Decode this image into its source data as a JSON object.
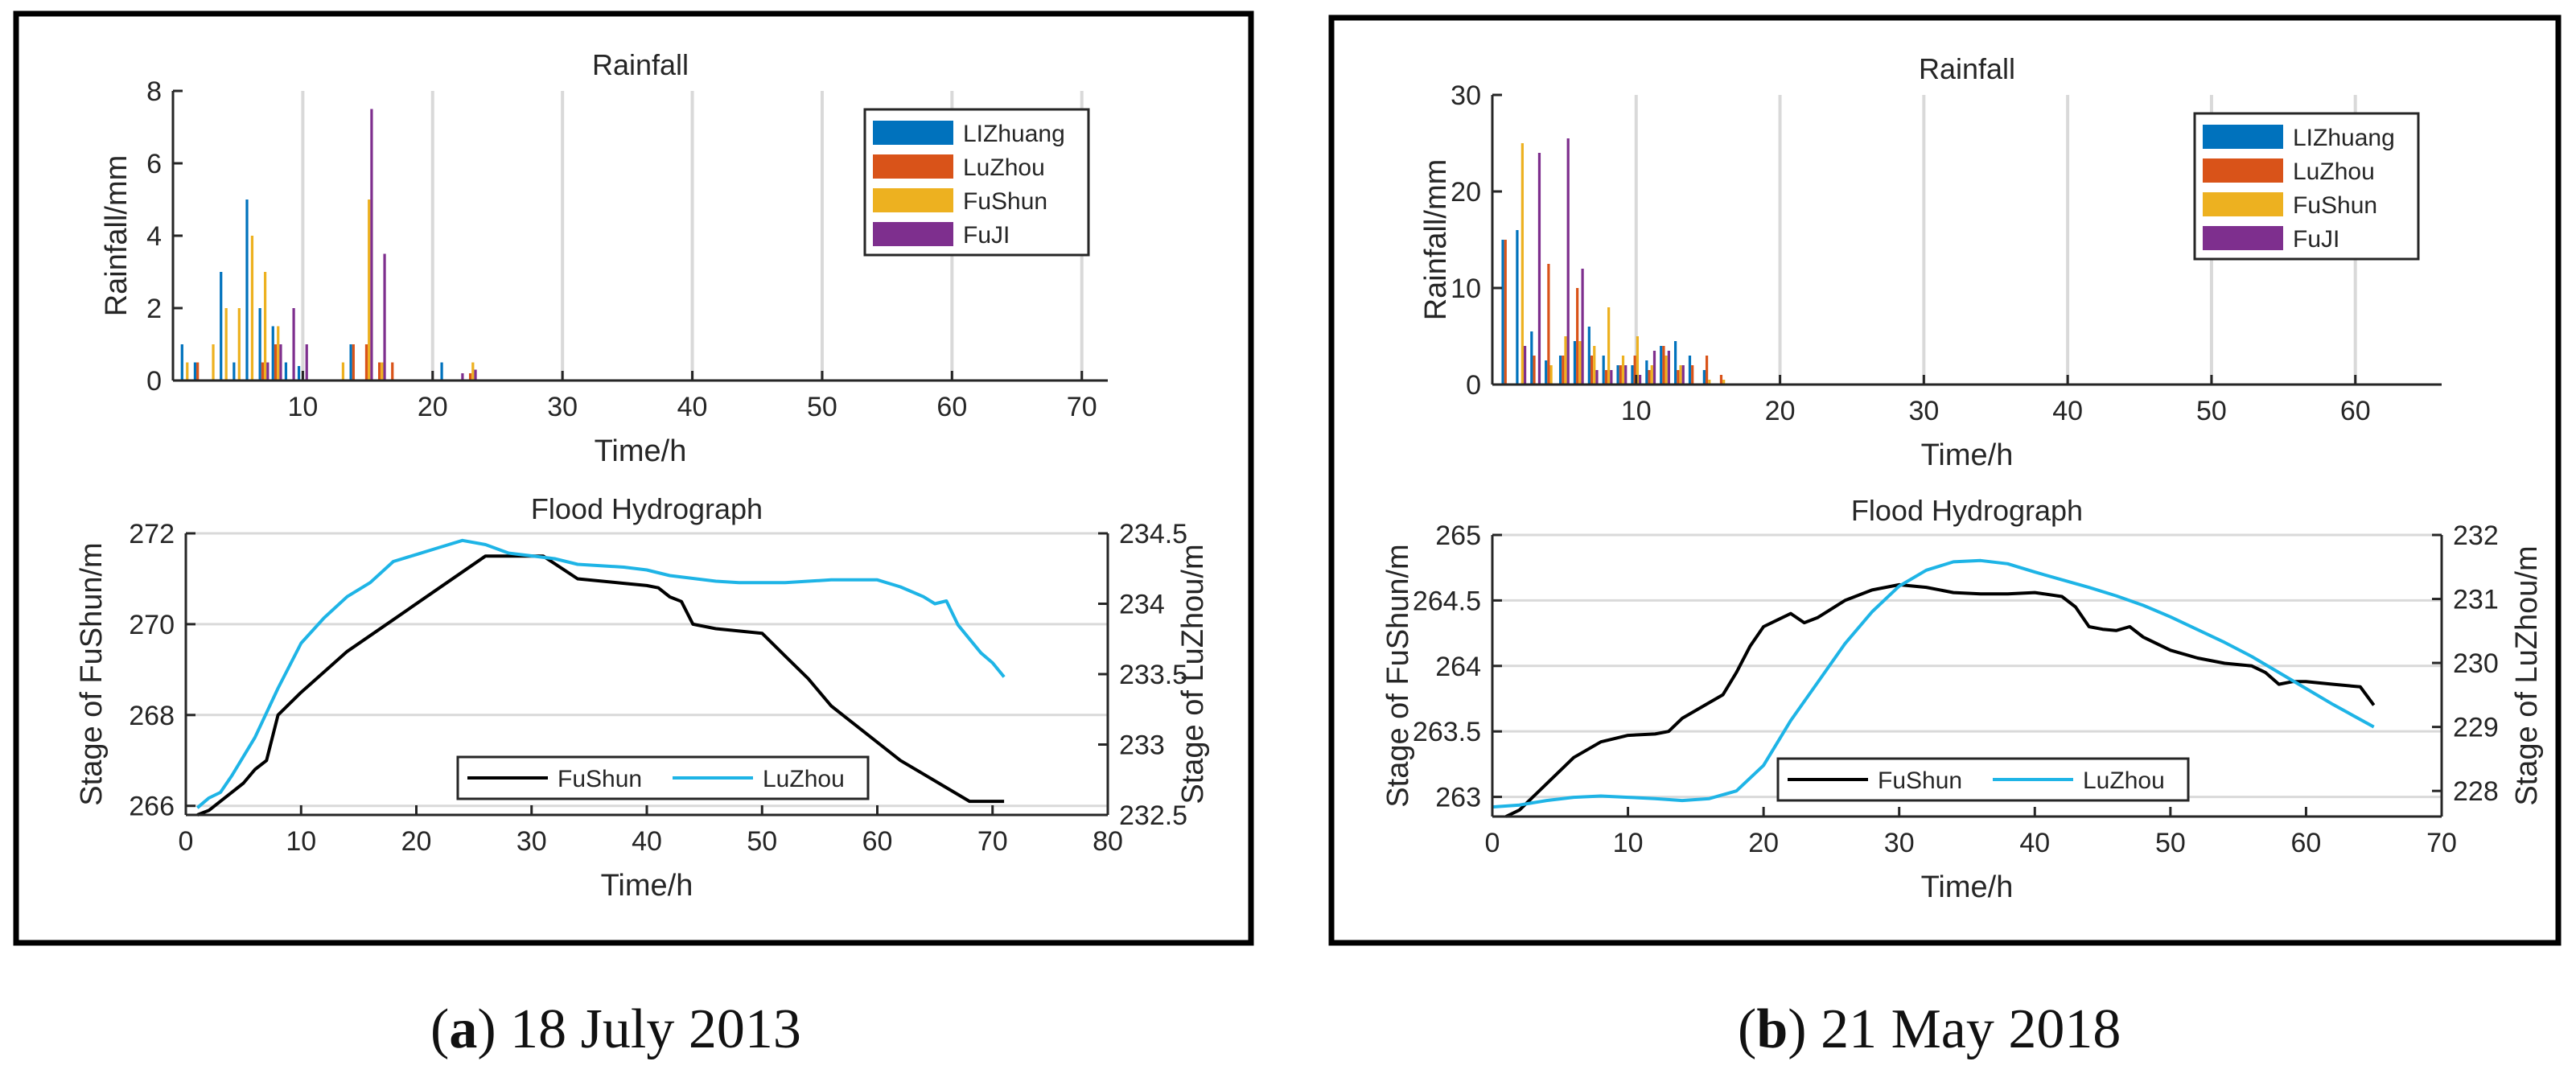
{
  "colors": {
    "LIZhuang": "#0072BD",
    "LuZhou": "#D95319",
    "FuShun": "#EDB120",
    "FuJI": "#7E2F8E",
    "stage_fushun": "#000000",
    "stage_luzhou": "#1EB4E6",
    "grid": "#d9d9d9",
    "axis": "#262626"
  },
  "captions": [
    {
      "letter": "a",
      "text": "18 July 2013"
    },
    {
      "letter": "b",
      "text": "21 May 2018"
    }
  ],
  "chart_data": [
    {
      "id": "a-rain",
      "type": "bar",
      "title": "Rainfall",
      "xlabel": "Time/h",
      "ylabel": "Rainfall/mm",
      "xlim": [
        0,
        72
      ],
      "ylim": [
        0,
        8
      ],
      "xticks": [
        10,
        20,
        30,
        40,
        50,
        60,
        70
      ],
      "yticks": [
        0,
        2,
        4,
        6,
        8
      ],
      "grid": "x",
      "legend": "top-right",
      "series": [
        {
          "name": "LIZhuang",
          "x": [
            1,
            2,
            3,
            4,
            5,
            6,
            7,
            8,
            9,
            10,
            13,
            14,
            15,
            16,
            17,
            21,
            22,
            23
          ],
          "values": [
            1,
            0.5,
            0,
            3,
            0.5,
            5,
            2,
            1.5,
            0.5,
            0.4,
            0,
            1,
            0,
            0,
            0,
            0.5,
            0,
            0
          ]
        },
        {
          "name": "LuZhou",
          "x": [
            1,
            2,
            3,
            4,
            5,
            6,
            7,
            8,
            9,
            10,
            13,
            14,
            15,
            16,
            17,
            21,
            22,
            23
          ],
          "values": [
            0,
            0.5,
            0,
            0,
            0,
            0,
            0.5,
            1,
            0,
            0,
            0,
            1,
            1,
            0.5,
            0.5,
            0,
            0,
            0.2
          ]
        },
        {
          "name": "FuShun",
          "x": [
            1,
            2,
            3,
            4,
            5,
            6,
            7,
            8,
            9,
            10,
            13,
            14,
            15,
            16,
            17,
            21,
            22,
            23
          ],
          "values": [
            0.5,
            0,
            1,
            2,
            2,
            4,
            3,
            1.5,
            0,
            0,
            0.5,
            0,
            5,
            0.5,
            0,
            0,
            0,
            0.5
          ]
        },
        {
          "name": "FuJI",
          "x": [
            1,
            2,
            3,
            4,
            5,
            6,
            7,
            8,
            9,
            10,
            13,
            14,
            15,
            16,
            17,
            21,
            22,
            23
          ],
          "values": [
            0,
            0,
            0,
            0,
            0,
            0,
            0.5,
            1,
            2,
            1,
            0,
            0,
            7.5,
            3.5,
            0,
            0,
            0.2,
            0.3
          ]
        }
      ]
    },
    {
      "id": "a-flood",
      "type": "line",
      "title": "Flood Hydrograph",
      "xlabel": "Time/h",
      "ylabel_left": "Stage of FuShun/m",
      "ylabel_right": "Stage of LuZhou/m",
      "xlim": [
        0,
        80
      ],
      "ylim_left": [
        265.8,
        272
      ],
      "ylim_right": [
        232.5,
        234.5
      ],
      "xticks": [
        0,
        10,
        20,
        30,
        40,
        50,
        60,
        70,
        80
      ],
      "yticks_left": [
        266,
        268,
        270,
        272
      ],
      "yticks_right": [
        232.5,
        233,
        233.5,
        234,
        234.5
      ],
      "ytick_labels_right": [
        "232.5",
        "233",
        "233.5",
        "234",
        "234.5"
      ],
      "grid": "y",
      "legend": "bottom-center",
      "series": [
        {
          "name": "FuShun",
          "axis": "left",
          "x": [
            1,
            2,
            3,
            4,
            5,
            6,
            7,
            8,
            10,
            14,
            18,
            22,
            26,
            28,
            30,
            31,
            34,
            38,
            40,
            41,
            42,
            43,
            44,
            46,
            48,
            50,
            52,
            54,
            56,
            58,
            60,
            62,
            64,
            66,
            68,
            71
          ],
          "y": [
            265.8,
            265.9,
            266.1,
            266.3,
            266.5,
            266.8,
            267.0,
            268.0,
            268.5,
            269.4,
            270.1,
            270.8,
            271.5,
            271.5,
            271.5,
            271.5,
            271.0,
            270.9,
            270.85,
            270.8,
            270.6,
            270.5,
            270.0,
            269.9,
            269.85,
            269.8,
            269.3,
            268.8,
            268.2,
            267.8,
            267.4,
            267.0,
            266.7,
            266.4,
            266.1,
            266.1
          ]
        },
        {
          "name": "LuZhou",
          "axis": "right",
          "x": [
            1,
            2,
            3,
            4,
            6,
            8,
            10,
            12,
            14,
            16,
            18,
            20,
            22,
            24,
            26,
            28,
            30,
            32,
            34,
            36,
            38,
            40,
            42,
            44,
            46,
            48,
            50,
            52,
            54,
            56,
            58,
            60,
            62,
            64,
            65,
            66,
            67,
            68,
            69,
            70,
            71
          ],
          "y": [
            232.55,
            232.62,
            232.66,
            232.78,
            233.05,
            233.4,
            233.72,
            233.9,
            234.05,
            234.15,
            234.3,
            234.35,
            234.4,
            234.45,
            234.42,
            234.36,
            234.34,
            234.32,
            234.28,
            234.27,
            234.26,
            234.24,
            234.2,
            234.18,
            234.16,
            234.15,
            234.15,
            234.15,
            234.16,
            234.17,
            234.17,
            234.17,
            234.12,
            234.05,
            234.0,
            234.02,
            233.85,
            233.75,
            233.65,
            233.58,
            233.48
          ]
        }
      ]
    },
    {
      "id": "b-rain",
      "type": "bar",
      "title": "Rainfall",
      "xlabel": "Time/h",
      "ylabel": "Rainfall/mm",
      "xlim": [
        0,
        66
      ],
      "ylim": [
        0,
        30
      ],
      "xticks": [
        10,
        20,
        30,
        40,
        50,
        60
      ],
      "yticks": [
        0,
        10,
        20,
        30
      ],
      "grid": "x",
      "legend": "top-right",
      "series": [
        {
          "name": "LIZhuang",
          "x": [
            1,
            2,
            3,
            4,
            5,
            6,
            7,
            8,
            9,
            10,
            11,
            12,
            13,
            14,
            15,
            16
          ],
          "values": [
            15,
            16,
            5.5,
            2.5,
            3,
            4.5,
            6,
            3,
            2,
            2,
            2.5,
            4,
            4.5,
            3,
            1.5,
            0
          ]
        },
        {
          "name": "LuZhou",
          "x": [
            1,
            2,
            3,
            4,
            5,
            6,
            7,
            8,
            9,
            10,
            11,
            12,
            13,
            14,
            15,
            16
          ],
          "values": [
            15,
            0,
            3,
            12.5,
            3,
            10,
            3,
            1.5,
            2,
            3,
            1.5,
            4,
            1.5,
            2,
            3,
            1
          ]
        },
        {
          "name": "FuShun",
          "x": [
            1,
            2,
            3,
            4,
            5,
            6,
            7,
            8,
            9,
            10,
            11,
            12,
            13,
            14,
            15,
            16
          ],
          "values": [
            0,
            25,
            0,
            2,
            5,
            4.5,
            4,
            8,
            3,
            5,
            2,
            3,
            2,
            0,
            0.5,
            0.5
          ]
        },
        {
          "name": "FuJI",
          "x": [
            1,
            2,
            3,
            4,
            5,
            6,
            7,
            8,
            9,
            10,
            11,
            12,
            13,
            14,
            15,
            16
          ],
          "values": [
            0,
            4,
            24,
            0,
            25.5,
            12,
            1.5,
            1.5,
            2,
            1,
            3.5,
            3.5,
            2,
            0,
            0,
            0
          ]
        }
      ]
    },
    {
      "id": "b-flood",
      "type": "line",
      "title": "Flood Hydrograph",
      "xlabel": "Time/h",
      "ylabel_left": "Stage of FuShun/m",
      "ylabel_right": "Stage of LuZhou/m",
      "xlim": [
        0,
        70
      ],
      "ylim_left": [
        262.85,
        265
      ],
      "ylim_right": [
        227.6,
        232
      ],
      "xticks": [
        0,
        10,
        20,
        30,
        40,
        50,
        60,
        70
      ],
      "yticks_left": [
        263,
        263.5,
        264,
        264.5,
        265
      ],
      "yticks_right": [
        228,
        229,
        230,
        231,
        232
      ],
      "ytick_labels_right": [
        "228",
        "229",
        "230",
        "231",
        "232"
      ],
      "grid": "y",
      "legend": "bottom-center",
      "series": [
        {
          "name": "FuShun",
          "axis": "left",
          "x": [
            1,
            2,
            4,
            6,
            8,
            10,
            12,
            13,
            14,
            16,
            17,
            18,
            19,
            20,
            21,
            22,
            23,
            24,
            26,
            28,
            30,
            32,
            34,
            36,
            38,
            40,
            42,
            43,
            44,
            45,
            46,
            47,
            48,
            50,
            52,
            54,
            56,
            57,
            58,
            59,
            60,
            62,
            64,
            65
          ],
          "y": [
            262.85,
            262.9,
            263.1,
            263.3,
            263.42,
            263.47,
            263.48,
            263.5,
            263.6,
            263.72,
            263.78,
            263.95,
            264.15,
            264.3,
            264.35,
            264.4,
            264.33,
            264.37,
            264.5,
            264.58,
            264.62,
            264.6,
            264.56,
            264.55,
            264.55,
            264.56,
            264.53,
            264.45,
            264.3,
            264.28,
            264.27,
            264.3,
            264.22,
            264.12,
            264.06,
            264.02,
            264.0,
            263.95,
            263.86,
            263.88,
            263.88,
            263.86,
            263.84,
            263.7
          ]
        },
        {
          "name": "LuZhou",
          "axis": "right",
          "x": [
            0,
            2,
            4,
            6,
            8,
            10,
            12,
            14,
            16,
            18,
            20,
            22,
            24,
            26,
            28,
            30,
            32,
            34,
            36,
            38,
            40,
            42,
            44,
            46,
            48,
            50,
            52,
            54,
            56,
            58,
            60,
            62,
            65
          ],
          "y": [
            227.75,
            227.78,
            227.85,
            227.9,
            227.92,
            227.9,
            227.88,
            227.85,
            227.88,
            228.0,
            228.4,
            229.1,
            229.7,
            230.3,
            230.8,
            231.2,
            231.45,
            231.58,
            231.6,
            231.55,
            231.42,
            231.3,
            231.18,
            231.05,
            230.9,
            230.72,
            230.52,
            230.32,
            230.1,
            229.85,
            229.6,
            229.35,
            229.0
          ]
        }
      ]
    }
  ]
}
